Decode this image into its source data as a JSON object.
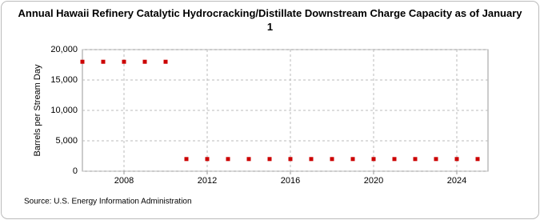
{
  "chart_data": {
    "type": "scatter",
    "title": "Annual Hawaii Refinery Catalytic Hydrocracking/Distillate Downstream Charge Capacity as of January 1",
    "y_label": "Barrels per Stream Day",
    "source": "Source: U.S. Energy Information Administration",
    "x": [
      2006,
      2007,
      2008,
      2009,
      2010,
      2011,
      2012,
      2013,
      2014,
      2015,
      2016,
      2017,
      2018,
      2019,
      2020,
      2021,
      2022,
      2023,
      2024,
      2025
    ],
    "values": [
      18000,
      18000,
      18000,
      18000,
      18000,
      2000,
      2000,
      2000,
      2000,
      2000,
      2000,
      2000,
      2000,
      2000,
      2000,
      2000,
      2000,
      2000,
      2000,
      2000
    ],
    "color": "#cc0000",
    "xlim": [
      2006,
      2025.5
    ],
    "xticks": [
      2008,
      2012,
      2016,
      2020,
      2024
    ],
    "ylim": [
      0,
      20000
    ],
    "yticks": [
      0,
      {
        "value": 5000,
        "label": "5,000"
      },
      {
        "value": 10000,
        "label": "10,000"
      },
      {
        "value": 15000,
        "label": "15,000"
      },
      {
        "value": 20000,
        "label": "20,000"
      }
    ],
    "grid": true
  }
}
